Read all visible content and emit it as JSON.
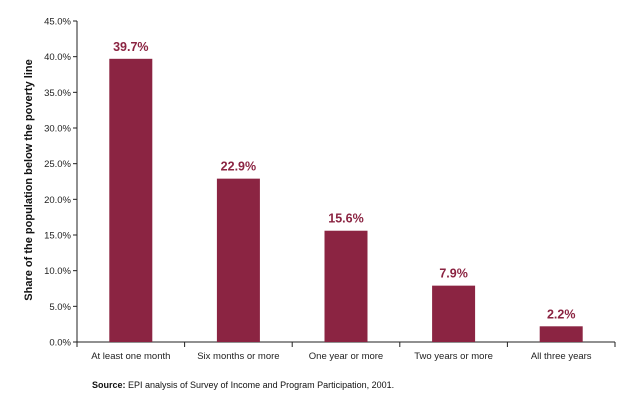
{
  "colors": {
    "bar": "#8b2442",
    "label": "#8b2442",
    "axis": "#222222"
  },
  "chart_data": {
    "type": "bar",
    "title": "",
    "xlabel": "",
    "ylabel": "Share of the population below the poverty line",
    "ylim": [
      0,
      45
    ],
    "yticks": [
      0,
      5,
      10,
      15,
      20,
      25,
      30,
      35,
      40,
      45
    ],
    "ytick_labels": [
      "0.0%",
      "5.0%",
      "10.0%",
      "15.0%",
      "20.0%",
      "25.0%",
      "30.0%",
      "35.0%",
      "40.0%",
      "45.0%"
    ],
    "categories": [
      "At least one month",
      "Six months or more",
      "One year or more",
      "Two years or more",
      "All three years"
    ],
    "values": [
      39.7,
      22.9,
      15.6,
      7.9,
      2.2
    ],
    "data_labels": [
      "39.7%",
      "22.9%",
      "15.6%",
      "7.9%",
      "2.2%"
    ],
    "grid": false,
    "legend": "none"
  },
  "source": {
    "prefix": "Source:",
    "text": " EPI analysis of Survey of Income and Program Participation, 2001."
  }
}
